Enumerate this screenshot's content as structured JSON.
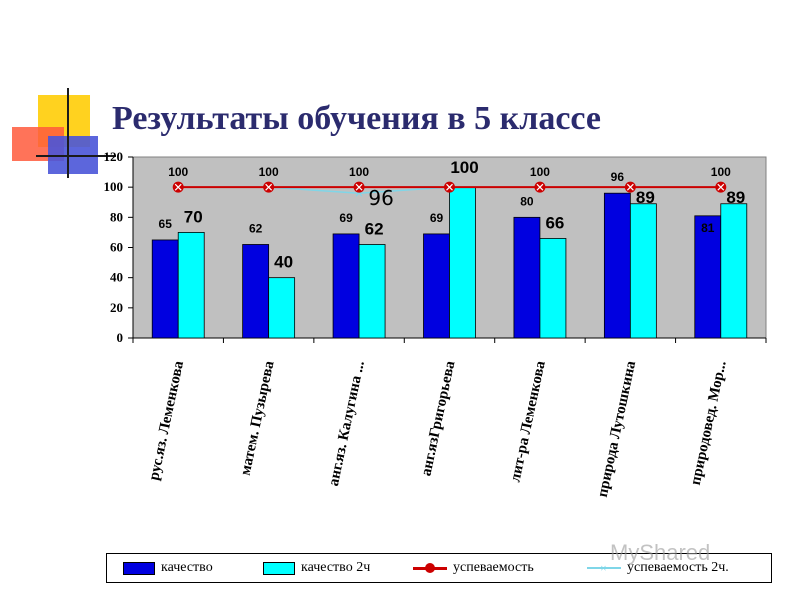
{
  "title": "Результаты обучения в 5 классе",
  "watermark": "MyShared",
  "colors": {
    "kachestvo": "#0000e0",
    "kachestvo2": "#00ffff",
    "uspev": "#cc0000",
    "uspev2": "#7fd6e8",
    "plot_bg": "#c0c0c0"
  },
  "chart_data": {
    "type": "bar",
    "ylim": [
      0,
      120
    ],
    "yticks": [
      0,
      20,
      40,
      60,
      80,
      100,
      120
    ],
    "grid": false,
    "legend_position": "bottom",
    "categories": [
      "рус.яз. Леменкова",
      "матем. Пузырева",
      "анг.яз. Калугина ...",
      "анг.язГригорьева",
      "лит-ра Леменкова",
      "природа Лутошкина",
      "природовед. Мор..."
    ],
    "series": [
      {
        "name": "качество",
        "type": "bar",
        "values": [
          65,
          62,
          69,
          69,
          80,
          96,
          81
        ]
      },
      {
        "name": "качество 2ч",
        "type": "bar",
        "values": [
          70,
          40,
          62,
          100,
          66,
          89,
          89
        ]
      },
      {
        "name": "успеваемость",
        "type": "line",
        "values": [
          100,
          100,
          100,
          100,
          100,
          100,
          100
        ]
      },
      {
        "name": "успеваемость 2ч.",
        "type": "line",
        "values": [
          100,
          100,
          96,
          100,
          100,
          100,
          100
        ]
      }
    ],
    "labels": {
      "kachestvo": [
        "65",
        "62",
        "69",
        "69",
        "80",
        "96",
        "81"
      ],
      "kachestvo2": [
        "70",
        "40",
        "62",
        "100",
        "66",
        "89",
        "89"
      ],
      "uspev": [
        "100",
        "100",
        "100",
        "",
        "100",
        "",
        "100"
      ],
      "uspev2_extra": "96"
    }
  }
}
